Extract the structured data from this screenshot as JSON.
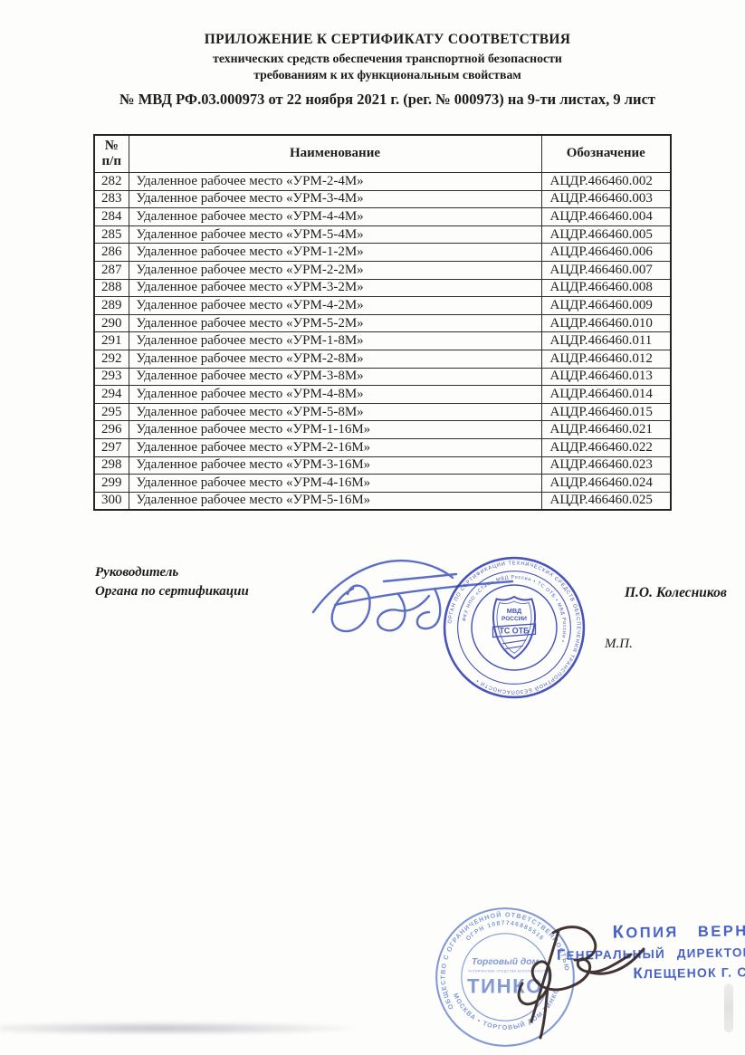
{
  "header": {
    "title_line1": "ПРИЛОЖЕНИЕ К СЕРТИФИКАТУ СООТВЕТСТВИЯ",
    "title_line2": "технических средств обеспечения транспортной безопасности",
    "title_line3": "требованиям к их функциональным свойствам",
    "certificate_line": "№ МВД РФ.03.000973 от 22 ноября 2021 г. (рег. № 000973) на 9-ти листах, 9 лист"
  },
  "table": {
    "col_num_line1": "№",
    "col_num_line2": "п/п",
    "col_name": "Наименование",
    "col_designation": "Обозначение",
    "rows": [
      {
        "num": "282",
        "name": "Удаленное рабочее место «УРМ-2-4М»",
        "designation": "АЦДР.466460.002"
      },
      {
        "num": "283",
        "name": "Удаленное рабочее место «УРМ-3-4М»",
        "designation": "АЦДР.466460.003"
      },
      {
        "num": "284",
        "name": "Удаленное рабочее место «УРМ-4-4М»",
        "designation": "АЦДР.466460.004"
      },
      {
        "num": "285",
        "name": "Удаленное рабочее место «УРМ-5-4М»",
        "designation": "АЦДР.466460.005"
      },
      {
        "num": "286",
        "name": "Удаленное рабочее место «УРМ-1-2М»",
        "designation": "АЦДР.466460.006"
      },
      {
        "num": "287",
        "name": "Удаленное рабочее место «УРМ-2-2М»",
        "designation": "АЦДР.466460.007"
      },
      {
        "num": "288",
        "name": "Удаленное рабочее место «УРМ-3-2М»",
        "designation": "АЦДР.466460.008"
      },
      {
        "num": "289",
        "name": "Удаленное рабочее место «УРМ-4-2М»",
        "designation": "АЦДР.466460.009"
      },
      {
        "num": "290",
        "name": "Удаленное рабочее место «УРМ-5-2М»",
        "designation": "АЦДР.466460.010"
      },
      {
        "num": "291",
        "name": "Удаленное рабочее место «УРМ-1-8М»",
        "designation": "АЦДР.466460.011"
      },
      {
        "num": "292",
        "name": "Удаленное рабочее место «УРМ-2-8М»",
        "designation": "АЦДР.466460.012"
      },
      {
        "num": "293",
        "name": "Удаленное рабочее место «УРМ-3-8М»",
        "designation": "АЦДР.466460.013"
      },
      {
        "num": "294",
        "name": "Удаленное рабочее место «УРМ-4-8М»",
        "designation": "АЦДР.466460.014"
      },
      {
        "num": "295",
        "name": "Удаленное рабочее место «УРМ-5-8М»",
        "designation": "АЦДР.466460.015"
      },
      {
        "num": "296",
        "name": "Удаленное рабочее место «УРМ-1-16М»",
        "designation": "АЦДР.466460.021"
      },
      {
        "num": "297",
        "name": "Удаленное рабочее место «УРМ-2-16М»",
        "designation": "АЦДР.466460.022"
      },
      {
        "num": "298",
        "name": "Удаленное рабочее место «УРМ-3-16М»",
        "designation": "АЦДР.466460.023"
      },
      {
        "num": "299",
        "name": "Удаленное рабочее место «УРМ-4-16М»",
        "designation": "АЦДР.466460.024"
      },
      {
        "num": "300",
        "name": "Удаленное рабочее место «УРМ-5-16М»",
        "designation": "АЦДР.466460.025"
      }
    ]
  },
  "signature_block": {
    "role_line1": "Руководитель",
    "role_line2": "Органа по сертификации",
    "signer_name": "П.О. Колесников",
    "seal_mark": "М.П."
  },
  "mvd_stamp": {
    "color": "#2f3db0",
    "ring_text_outer": "ОРГАН ПО СЕРТИФИКАЦИИ ТЕХНИЧЕСКИХ СРЕДСТВ ОБЕСПЕЧЕНИЯ ТРАНСПОРТНОЙ БЕЗОПАСНОСТИ •",
    "ring_text_inner": "ФКУ НПО «СТиС» МВД России • ТС ОТБ • МВД России •",
    "shield_line1": "МВД",
    "shield_line2": "РОССИИ",
    "shield_banner": "ТС ОТБ"
  },
  "tinko_stamp": {
    "color": "#6d88cf",
    "ring_text_top": "ОБЩЕСТВО С ОГРАНИЧЕННОЙ ОТВЕТСТВЕННОСТЬЮ",
    "ring_text_ogrn": "ОГРН 1087746885516",
    "ring_text_bottom": "• МОСКВА • ТОРГОВЫЙ ДОМ ТИНКО",
    "center_line1": "Торговый дом",
    "center_tagline": "ТЕХНИЧЕСКИЕ СРЕДСТВА БЕЗОПАСНОСТИ",
    "center_logo": "ТИНКО"
  },
  "copy_stamp": {
    "color": "#4a63c6",
    "line1": "КОПИЯ  ВЕРНА",
    "line2": "ГЕНЕРАЛЬНЫЙ  ДИРЕКТОР",
    "line3": "КЛЕЩЕНОК Г. С."
  }
}
